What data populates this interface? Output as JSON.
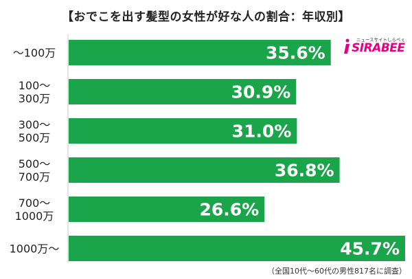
{
  "chart_data": {
    "type": "bar",
    "orientation": "horizontal",
    "title": "【おでこを出す髪型の女性が好な人の割合：年収別】",
    "categories": [
      [
        "～100万"
      ],
      [
        "100～",
        "300万"
      ],
      [
        "300～",
        "500万"
      ],
      [
        "500～",
        "700万"
      ],
      [
        "700～",
        "1000万"
      ],
      [
        "1000万～"
      ]
    ],
    "values": [
      35.6,
      30.9,
      31.0,
      36.8,
      26.6,
      45.7
    ],
    "value_labels": [
      "35.6%",
      "30.9%",
      "31.0%",
      "36.8%",
      "26.6%",
      "45.7%"
    ],
    "xlim": [
      0,
      45.7
    ],
    "bar_color": "#1aa54a",
    "label_color": "#ffffff",
    "grid": false
  },
  "logo": {
    "tagline": "ニュースサイトしらべぇ",
    "name": "SIRABEE",
    "color": "#e4007f"
  },
  "footnote": "（全国10代～60代の男性817名に調査）"
}
